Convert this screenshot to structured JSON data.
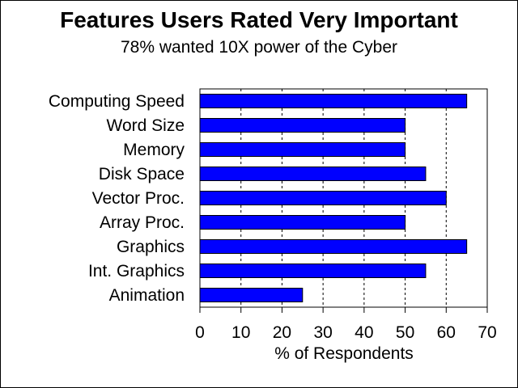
{
  "chart_data": {
    "type": "bar",
    "orientation": "horizontal",
    "title": "Features Users Rated Very Important",
    "subtitle": "78% wanted 10X power of the Cyber",
    "xlabel": "% of Respondents",
    "ylabel": "",
    "categories": [
      "Computing Speed",
      "Word Size",
      "Memory",
      "Disk Space",
      "Vector Proc.",
      "Array Proc.",
      "Graphics",
      "Int. Graphics",
      "Animation"
    ],
    "values": [
      65,
      50,
      50,
      55,
      60,
      50,
      65,
      55,
      25
    ],
    "xlim": [
      0,
      70
    ],
    "xticks": [
      0,
      10,
      20,
      30,
      40,
      50,
      60,
      70
    ],
    "grid": "vertical-dashed",
    "bar_color": "#0000ff",
    "legend": "none"
  }
}
